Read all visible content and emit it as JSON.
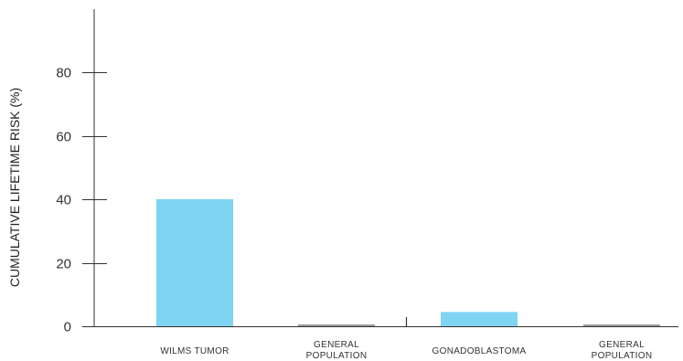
{
  "chart_data": {
    "type": "bar",
    "title": "",
    "xlabel": "",
    "ylabel": "CUMULATIVE LIFETIME RISK (%)",
    "ylim": [
      0,
      100
    ],
    "yticks": [
      0,
      20,
      40,
      60,
      80
    ],
    "grid": false,
    "categories": [
      [
        "WILMS TUMOR"
      ],
      [
        "GENERAL",
        "POPULATION"
      ],
      [
        "GONADOBLASTOMA"
      ],
      [
        "GENERAL",
        "POPULATION"
      ]
    ],
    "values": [
      40,
      0.5,
      4.5,
      0.5
    ],
    "colors": [
      "#7fd4f2",
      "#9a9a9a",
      "#7fd4f2",
      "#9a9a9a"
    ],
    "group_divider_after_index": 1
  }
}
